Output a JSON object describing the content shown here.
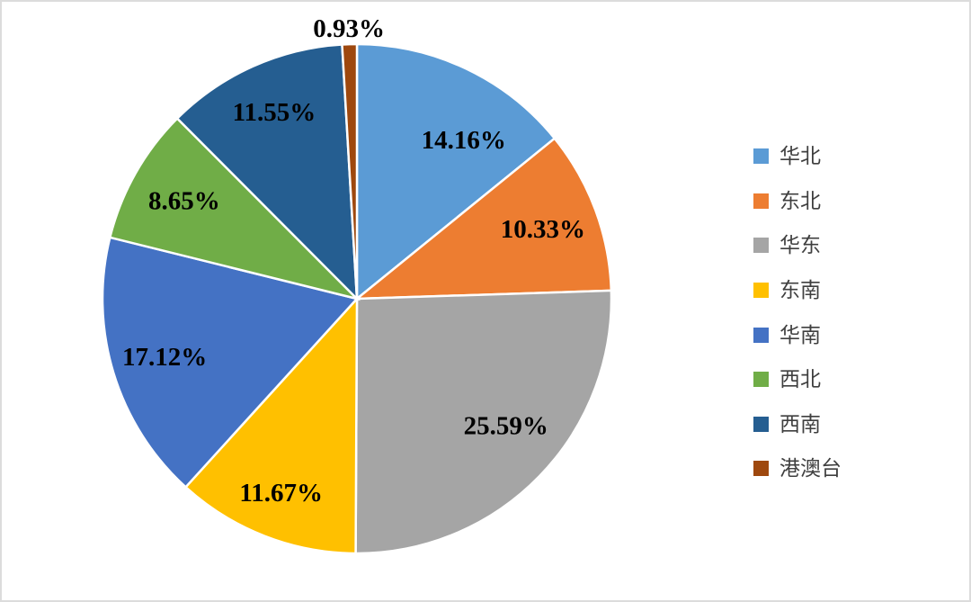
{
  "canvas": {
    "background": "#FFFFFF",
    "border_color": "#DCDCDC"
  },
  "chart_data": {
    "type": "pie",
    "title": "",
    "categories": [
      "华北",
      "东北",
      "华东",
      "东南",
      "华南",
      "西北",
      "西南",
      "港澳台"
    ],
    "values": [
      14.16,
      10.33,
      25.59,
      11.67,
      17.12,
      8.65,
      11.55,
      0.93
    ],
    "labels": [
      "14.16%",
      "10.33%",
      "25.59%",
      "11.67%",
      "17.12%",
      "8.65%",
      "11.55%",
      "0.93%"
    ],
    "colors": [
      "#5B9BD5",
      "#ED7D31",
      "#A5A5A5",
      "#FFC000",
      "#4472C4",
      "#70AD47",
      "#255E91",
      "#9E480E"
    ],
    "label_color": "#000000",
    "slice_border_color": "#FFFFFF",
    "start_angle_deg": 0,
    "direction": "clockwise",
    "legend_position": "right",
    "total": 100.0
  }
}
